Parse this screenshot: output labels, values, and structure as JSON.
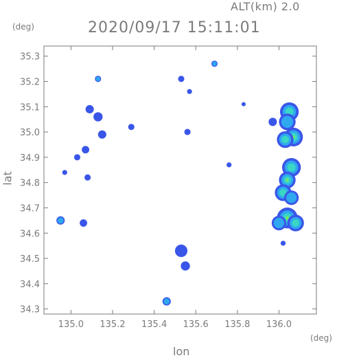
{
  "header": {
    "altitude_label": "ALT(km) 2.0",
    "timestamp": "2020/09/17 15:11:01"
  },
  "chart_data": {
    "type": "heatmap",
    "title": "2020/09/17 15:11:01",
    "subtitle": "ALT(km) 2.0",
    "xlabel": "lon",
    "ylabel": "lat",
    "x_unit": "(deg)",
    "y_unit": "(deg)",
    "xlim": [
      134.87,
      136.18
    ],
    "ylim": [
      34.28,
      35.34
    ],
    "x_ticks": [
      135.0,
      135.2,
      135.4,
      135.6,
      135.8,
      136.0
    ],
    "x_tick_labels": [
      "135.0",
      "135.2",
      "135.4",
      "135.6",
      "135.8",
      "136.0"
    ],
    "y_ticks": [
      34.3,
      34.4,
      34.5,
      34.6,
      34.7,
      34.8,
      34.9,
      35.0,
      35.1,
      35.2,
      35.3
    ],
    "y_tick_labels": [
      "34.3",
      "34.4",
      "34.5",
      "34.6",
      "34.7",
      "34.8",
      "34.9",
      "35.0",
      "35.1",
      "35.2",
      "35.3"
    ],
    "grid": false,
    "colors": {
      "weak": "#3a56e8",
      "moderate": "#2fa8f0",
      "strong": "#3ad7c4",
      "intense": "#7ee85a"
    },
    "echoes": [
      {
        "lon": 136.05,
        "lat": 35.08,
        "intensity": 3,
        "r": 0.045
      },
      {
        "lon": 136.04,
        "lat": 35.04,
        "intensity": 2,
        "r": 0.04
      },
      {
        "lon": 136.07,
        "lat": 34.98,
        "intensity": 4,
        "r": 0.045
      },
      {
        "lon": 136.03,
        "lat": 34.97,
        "intensity": 3,
        "r": 0.04
      },
      {
        "lon": 136.06,
        "lat": 34.86,
        "intensity": 3,
        "r": 0.045
      },
      {
        "lon": 136.04,
        "lat": 34.81,
        "intensity": 4,
        "r": 0.04
      },
      {
        "lon": 136.02,
        "lat": 34.76,
        "intensity": 3,
        "r": 0.04
      },
      {
        "lon": 136.06,
        "lat": 34.74,
        "intensity": 2,
        "r": 0.035
      },
      {
        "lon": 136.04,
        "lat": 34.66,
        "intensity": 4,
        "r": 0.05
      },
      {
        "lon": 136.08,
        "lat": 34.64,
        "intensity": 3,
        "r": 0.04
      },
      {
        "lon": 136.0,
        "lat": 34.64,
        "intensity": 2,
        "r": 0.035
      },
      {
        "lon": 135.97,
        "lat": 35.04,
        "intensity": 1,
        "r": 0.02
      },
      {
        "lon": 136.02,
        "lat": 34.56,
        "intensity": 1,
        "r": 0.012
      },
      {
        "lon": 134.95,
        "lat": 34.65,
        "intensity": 2,
        "r": 0.02
      },
      {
        "lon": 135.06,
        "lat": 34.64,
        "intensity": 1,
        "r": 0.018
      },
      {
        "lon": 135.09,
        "lat": 35.09,
        "intensity": 1,
        "r": 0.02
      },
      {
        "lon": 135.13,
        "lat": 35.06,
        "intensity": 1,
        "r": 0.022
      },
      {
        "lon": 135.15,
        "lat": 34.99,
        "intensity": 1,
        "r": 0.02
      },
      {
        "lon": 135.07,
        "lat": 34.93,
        "intensity": 1,
        "r": 0.018
      },
      {
        "lon": 135.03,
        "lat": 34.9,
        "intensity": 1,
        "r": 0.015
      },
      {
        "lon": 134.97,
        "lat": 34.84,
        "intensity": 1,
        "r": 0.012
      },
      {
        "lon": 135.08,
        "lat": 34.82,
        "intensity": 1,
        "r": 0.015
      },
      {
        "lon": 135.29,
        "lat": 35.02,
        "intensity": 1,
        "r": 0.015
      },
      {
        "lon": 135.53,
        "lat": 35.21,
        "intensity": 1,
        "r": 0.015
      },
      {
        "lon": 135.57,
        "lat": 35.16,
        "intensity": 1,
        "r": 0.012
      },
      {
        "lon": 135.56,
        "lat": 35.0,
        "intensity": 1,
        "r": 0.015
      },
      {
        "lon": 135.69,
        "lat": 35.27,
        "intensity": 2,
        "r": 0.015
      },
      {
        "lon": 135.83,
        "lat": 35.11,
        "intensity": 1,
        "r": 0.01
      },
      {
        "lon": 135.53,
        "lat": 34.53,
        "intensity": 1,
        "r": 0.03
      },
      {
        "lon": 135.55,
        "lat": 34.47,
        "intensity": 1,
        "r": 0.022
      },
      {
        "lon": 135.46,
        "lat": 34.33,
        "intensity": 2,
        "r": 0.02
      },
      {
        "lon": 135.76,
        "lat": 34.87,
        "intensity": 1,
        "r": 0.012
      },
      {
        "lon": 135.13,
        "lat": 35.21,
        "intensity": 2,
        "r": 0.015
      }
    ]
  }
}
